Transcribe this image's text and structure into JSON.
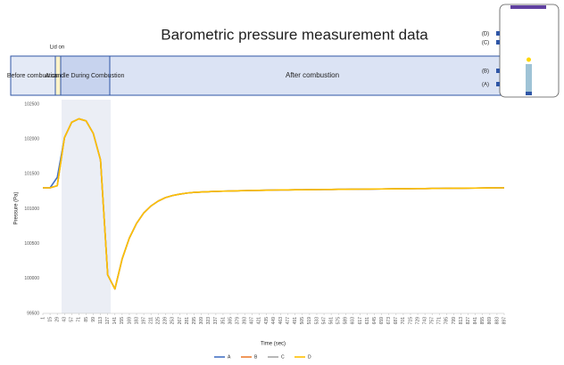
{
  "chart_data": {
    "type": "line",
    "title": "Barometric pressure measurement data",
    "x_label": "Time (sec)",
    "y_label": "Pressure (Pa)",
    "lid_label": "Lid on",
    "phases": [
      "Before combustion",
      "A candle During Combustion",
      "After combustion"
    ],
    "diagram_labels": [
      "(D)",
      "(C)",
      "(B)",
      "(A)"
    ],
    "grid": false,
    "legend": "bottom",
    "ylim": [
      99500,
      102500
    ],
    "yticks": [
      99500,
      100000,
      100500,
      101000,
      101500,
      102000,
      102500
    ],
    "categories": [
      1,
      15,
      29,
      43,
      57,
      71,
      85,
      99,
      113,
      127,
      141,
      155,
      169,
      183,
      197,
      211,
      225,
      239,
      253,
      267,
      281,
      295,
      309,
      323,
      337,
      351,
      365,
      379,
      393,
      407,
      421,
      435,
      449,
      463,
      477,
      491,
      505,
      519,
      533,
      547,
      561,
      575,
      589,
      603,
      617,
      631,
      645,
      659,
      673,
      687,
      701,
      715,
      729,
      743,
      757,
      771,
      785,
      799,
      813,
      827,
      841,
      855,
      869,
      883,
      897
    ],
    "series": [
      {
        "name": "A",
        "color": "#4472c4",
        "values": [
          101300,
          101300,
          101450,
          102020,
          102240,
          102290,
          102260,
          102080,
          101700,
          100050,
          99850,
          100280,
          100580,
          100790,
          100940,
          101040,
          101110,
          101160,
          101190,
          101210,
          101225,
          101235,
          101240,
          101245,
          101250,
          101252,
          101255,
          101258,
          101260,
          101262,
          101264,
          101266,
          101268,
          101270,
          101271,
          101272,
          101273,
          101274,
          101275,
          101276,
          101277,
          101278,
          101279,
          101280,
          101281,
          101282,
          101283,
          101284,
          101285,
          101286,
          101287,
          101288,
          101289,
          101290,
          101291,
          101292,
          101293,
          101294,
          101295,
          101296,
          101297,
          101298,
          101299,
          101300,
          101300
        ]
      },
      {
        "name": "B",
        "color": "#ed7d31",
        "values": [
          101300,
          101300,
          101330,
          102020,
          102240,
          102290,
          102260,
          102080,
          101700,
          100050,
          99850,
          100280,
          100580,
          100790,
          100940,
          101040,
          101110,
          101160,
          101190,
          101210,
          101225,
          101235,
          101240,
          101245,
          101250,
          101252,
          101255,
          101258,
          101260,
          101262,
          101264,
          101266,
          101268,
          101270,
          101271,
          101272,
          101273,
          101274,
          101275,
          101276,
          101277,
          101278,
          101279,
          101280,
          101281,
          101282,
          101283,
          101284,
          101285,
          101286,
          101287,
          101288,
          101289,
          101290,
          101291,
          101292,
          101293,
          101294,
          101295,
          101296,
          101297,
          101298,
          101299,
          101300,
          101300
        ]
      },
      {
        "name": "C",
        "color": "#a5a5a5",
        "values": [
          101300,
          101300,
          101330,
          102020,
          102240,
          102290,
          102260,
          102080,
          101700,
          100050,
          99850,
          100280,
          100580,
          100790,
          100940,
          101040,
          101110,
          101160,
          101190,
          101210,
          101225,
          101235,
          101240,
          101245,
          101250,
          101252,
          101255,
          101258,
          101260,
          101262,
          101264,
          101266,
          101268,
          101270,
          101271,
          101272,
          101273,
          101274,
          101275,
          101276,
          101277,
          101278,
          101279,
          101280,
          101281,
          101282,
          101283,
          101284,
          101285,
          101286,
          101287,
          101288,
          101289,
          101290,
          101291,
          101292,
          101293,
          101294,
          101295,
          101296,
          101297,
          101298,
          101299,
          101300,
          101300
        ]
      },
      {
        "name": "D",
        "color": "#ffc000",
        "values": [
          101300,
          101300,
          101330,
          102020,
          102240,
          102290,
          102260,
          102080,
          101700,
          100050,
          99850,
          100280,
          100580,
          100790,
          100940,
          101040,
          101110,
          101160,
          101190,
          101210,
          101225,
          101235,
          101240,
          101245,
          101250,
          101252,
          101255,
          101258,
          101260,
          101262,
          101264,
          101266,
          101268,
          101270,
          101271,
          101272,
          101273,
          101274,
          101275,
          101276,
          101277,
          101278,
          101279,
          101280,
          101281,
          101282,
          101283,
          101284,
          101285,
          101286,
          101287,
          101288,
          101289,
          101290,
          101291,
          101292,
          101293,
          101294,
          101295,
          101296,
          101297,
          101298,
          101299,
          101300,
          101300
        ]
      }
    ]
  }
}
